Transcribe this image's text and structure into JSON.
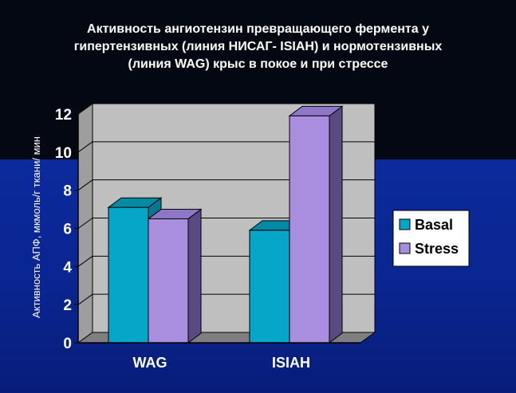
{
  "chart_data": {
    "type": "bar",
    "title_lines": [
      "Активность ангиотензин превращающего фермента у",
      "гипертензивных (линия НИСАГ- ISIAH) и нормотензивных",
      "(линия WAG) крыс в покое и при стрессе"
    ],
    "ylabel": "Активность АПФ, мкмоль/г ткани/ мин",
    "xlabel": "",
    "categories": [
      "WAG",
      "ISIAH"
    ],
    "series": [
      {
        "name": "Basal",
        "values": [
          7.1,
          5.9
        ],
        "color": "#06a6c8",
        "side_color": "#047a90",
        "top_color": "#058aa6"
      },
      {
        "name": "Stress",
        "values": [
          6.5,
          11.9
        ],
        "color": "#a98ee0",
        "side_color": "#5a4a82",
        "top_color": "#8e76c8"
      }
    ],
    "ylim": [
      0,
      12
    ],
    "yticks": [
      "0",
      "2",
      "4",
      "6",
      "8",
      "10",
      "12"
    ],
    "grid": true,
    "legend_position": "right",
    "colors": {
      "background_top": "#040812",
      "background_bottom": "#0c2a9c",
      "wall": "#bfbfbf",
      "floor": "#7f7f7f"
    }
  }
}
